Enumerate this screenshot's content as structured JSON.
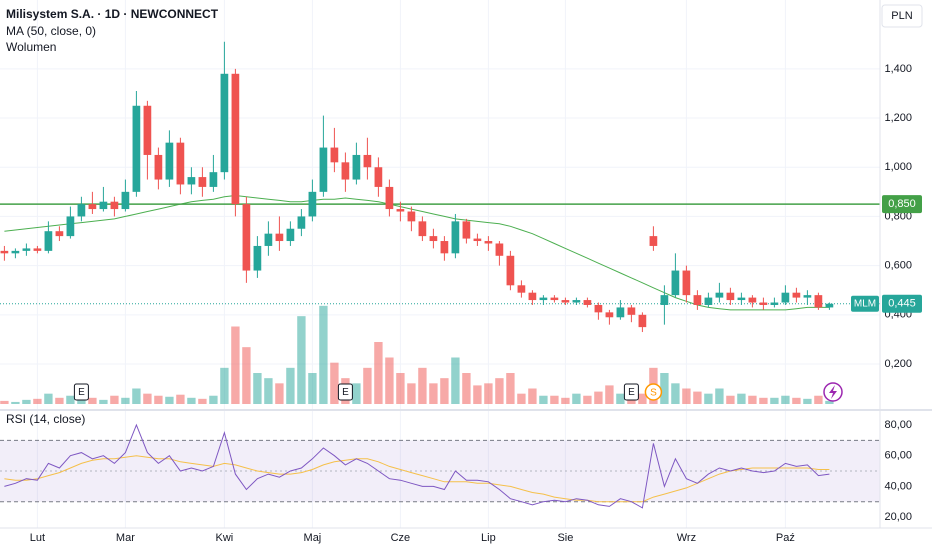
{
  "chart_data": {
    "type": "candlestick",
    "title": "Milisystem S.A. · 1D · NEWCONNECT",
    "currency": "PLN",
    "up_color": "#26a69a",
    "down_color": "#ef5350",
    "xlim": [
      -0.4,
      79.6
    ],
    "x_labels": [
      {
        "value": 3,
        "label": "Lut"
      },
      {
        "value": 11,
        "label": "Mar"
      },
      {
        "value": 20,
        "label": "Kwi"
      },
      {
        "value": 28,
        "label": "Maj"
      },
      {
        "value": 36,
        "label": "Cze"
      },
      {
        "value": 44,
        "label": "Lip"
      },
      {
        "value": 51,
        "label": "Sie"
      },
      {
        "value": 62,
        "label": "Wrz"
      },
      {
        "value": 71,
        "label": "Paź"
      }
    ],
    "ylim": [
      0.013,
      1.68
    ],
    "yticks": [
      {
        "value": 0.2,
        "label": "0,200"
      },
      {
        "value": 0.4,
        "label": "0,400"
      },
      {
        "value": 0.6,
        "label": "0,600"
      },
      {
        "value": 0.8,
        "label": "0,800"
      },
      {
        "value": 1.0,
        "label": "1,000"
      },
      {
        "value": 1.2,
        "label": "1,200"
      },
      {
        "value": 1.4,
        "label": "1,400"
      }
    ],
    "open": [
      0.66,
      0.65,
      0.66,
      0.67,
      0.66,
      0.74,
      0.72,
      0.8,
      0.85,
      0.83,
      0.86,
      0.83,
      0.9,
      1.25,
      1.05,
      0.95,
      1.1,
      0.93,
      0.96,
      0.92,
      0.98,
      1.38,
      0.85,
      0.58,
      0.68,
      0.73,
      0.7,
      0.75,
      0.8,
      0.9,
      1.08,
      1.02,
      0.95,
      1.05,
      1.0,
      0.92,
      0.83,
      0.82,
      0.78,
      0.72,
      0.7,
      0.65,
      0.78,
      0.71,
      0.7,
      0.69,
      0.64,
      0.52,
      0.49,
      0.46,
      0.47,
      0.46,
      0.45,
      0.46,
      0.44,
      0.41,
      0.39,
      0.43,
      0.4,
      0.72,
      0.44,
      0.48,
      0.58,
      0.48,
      0.44,
      0.47,
      0.49,
      0.46,
      0.47,
      0.45,
      0.44,
      0.45,
      0.49,
      0.47,
      0.48,
      0.43
    ],
    "high": [
      0.68,
      0.67,
      0.69,
      0.68,
      0.78,
      0.76,
      0.84,
      0.88,
      0.9,
      0.92,
      0.88,
      0.95,
      1.31,
      1.27,
      1.08,
      1.15,
      1.12,
      1.0,
      1.0,
      1.05,
      1.51,
      1.4,
      0.88,
      0.72,
      0.78,
      0.8,
      0.78,
      0.83,
      0.95,
      1.21,
      1.16,
      1.06,
      1.1,
      1.12,
      1.04,
      0.95,
      0.86,
      0.84,
      0.8,
      0.75,
      0.72,
      0.81,
      0.79,
      0.73,
      0.72,
      0.7,
      0.66,
      0.54,
      0.5,
      0.48,
      0.48,
      0.47,
      0.47,
      0.47,
      0.45,
      0.42,
      0.46,
      0.44,
      0.41,
      0.76,
      0.52,
      0.65,
      0.6,
      0.5,
      0.49,
      0.53,
      0.51,
      0.49,
      0.48,
      0.47,
      0.47,
      0.52,
      0.51,
      0.5,
      0.49,
      0.45
    ],
    "low": [
      0.62,
      0.63,
      0.64,
      0.65,
      0.65,
      0.7,
      0.71,
      0.78,
      0.81,
      0.82,
      0.8,
      0.82,
      0.88,
      0.95,
      0.91,
      0.92,
      0.89,
      0.89,
      0.88,
      0.9,
      0.95,
      0.8,
      0.53,
      0.55,
      0.64,
      0.66,
      0.68,
      0.72,
      0.78,
      0.88,
      0.98,
      0.9,
      0.93,
      0.95,
      0.88,
      0.8,
      0.78,
      0.74,
      0.7,
      0.67,
      0.62,
      0.63,
      0.69,
      0.68,
      0.66,
      0.6,
      0.5,
      0.47,
      0.44,
      0.44,
      0.45,
      0.44,
      0.44,
      0.43,
      0.38,
      0.36,
      0.38,
      0.37,
      0.33,
      0.66,
      0.36,
      0.47,
      0.45,
      0.42,
      0.43,
      0.45,
      0.44,
      0.44,
      0.43,
      0.42,
      0.43,
      0.44,
      0.45,
      0.44,
      0.42,
      0.42
    ],
    "close": [
      0.65,
      0.66,
      0.67,
      0.66,
      0.74,
      0.72,
      0.8,
      0.85,
      0.83,
      0.86,
      0.83,
      0.9,
      1.25,
      1.05,
      0.95,
      1.1,
      0.93,
      0.96,
      0.92,
      0.98,
      1.38,
      0.85,
      0.58,
      0.68,
      0.73,
      0.7,
      0.75,
      0.8,
      0.9,
      1.08,
      1.02,
      0.95,
      1.05,
      1.0,
      0.92,
      0.83,
      0.82,
      0.78,
      0.72,
      0.7,
      0.65,
      0.78,
      0.71,
      0.7,
      0.69,
      0.64,
      0.52,
      0.49,
      0.46,
      0.47,
      0.46,
      0.45,
      0.46,
      0.44,
      0.41,
      0.39,
      0.43,
      0.4,
      0.35,
      0.68,
      0.48,
      0.58,
      0.48,
      0.44,
      0.47,
      0.49,
      0.46,
      0.47,
      0.45,
      0.44,
      0.45,
      0.49,
      0.47,
      0.48,
      0.43,
      0.445
    ],
    "ma": {
      "label": "MA (50, close, 0)",
      "color": "#4caf50",
      "values": [
        0.74,
        0.745,
        0.75,
        0.755,
        0.76,
        0.765,
        0.77,
        0.775,
        0.78,
        0.785,
        0.79,
        0.8,
        0.81,
        0.82,
        0.83,
        0.84,
        0.85,
        0.86,
        0.865,
        0.87,
        0.88,
        0.885,
        0.88,
        0.875,
        0.87,
        0.865,
        0.86,
        0.86,
        0.865,
        0.87,
        0.87,
        0.875,
        0.87,
        0.865,
        0.86,
        0.85,
        0.84,
        0.83,
        0.82,
        0.81,
        0.8,
        0.79,
        0.785,
        0.78,
        0.775,
        0.77,
        0.76,
        0.745,
        0.73,
        0.71,
        0.69,
        0.67,
        0.65,
        0.63,
        0.61,
        0.59,
        0.57,
        0.55,
        0.53,
        0.51,
        0.49,
        0.47,
        0.455,
        0.44,
        0.43,
        0.425,
        0.42,
        0.42,
        0.42,
        0.42,
        0.42,
        0.42,
        0.425,
        0.43,
        0.43,
        0.43
      ]
    },
    "volume": {
      "label": "Wolumen",
      "ylim": [
        0,
        120
      ],
      "up_color": "rgba(38,166,154,0.5)",
      "down_color": "rgba(239,83,80,0.5)",
      "values": [
        3,
        2,
        4,
        5,
        10,
        6,
        8,
        5,
        6,
        4,
        8,
        6,
        15,
        10,
        8,
        7,
        9,
        6,
        5,
        8,
        35,
        75,
        55,
        30,
        25,
        20,
        35,
        85,
        30,
        95,
        40,
        25,
        20,
        35,
        60,
        45,
        30,
        20,
        35,
        20,
        25,
        45,
        30,
        18,
        20,
        25,
        30,
        10,
        15,
        8,
        8,
        6,
        10,
        8,
        12,
        18,
        10,
        12,
        10,
        35,
        30,
        20,
        15,
        12,
        10,
        15,
        8,
        10,
        8,
        6,
        6,
        8,
        6,
        5,
        8,
        3
      ]
    },
    "hline": {
      "value": 0.85,
      "label": "0,850",
      "color": "#43a047"
    },
    "last": {
      "symbol": "MLM",
      "value": 0.445,
      "label": "0,445",
      "color": "#26a69a"
    },
    "events": [
      {
        "index": 7,
        "label": "E"
      },
      {
        "index": 31,
        "label": "E"
      },
      {
        "index": 57,
        "label": "E"
      },
      {
        "index": 59,
        "label": "S"
      }
    ],
    "rsi": {
      "title": "RSI (14, close)",
      "color": "#7e57c2",
      "ma_color": "#f5c04a",
      "ylim": [
        12.9,
        87.8
      ],
      "yticks": [
        {
          "value": 20,
          "label": "20,00"
        },
        {
          "value": 40,
          "label": "40,00"
        },
        {
          "value": 60,
          "label": "60,00"
        },
        {
          "value": 80,
          "label": "80,00"
        }
      ],
      "bands": [
        30,
        70
      ],
      "mid": 50,
      "values": [
        40,
        42,
        45,
        44,
        55,
        52,
        60,
        62,
        58,
        60,
        55,
        62,
        80,
        62,
        55,
        60,
        50,
        52,
        50,
        53,
        75,
        48,
        38,
        45,
        48,
        46,
        50,
        52,
        58,
        65,
        60,
        54,
        58,
        55,
        50,
        45,
        44,
        42,
        40,
        40,
        38,
        50,
        44,
        44,
        43,
        38,
        32,
        30,
        28,
        30,
        31,
        30,
        32,
        31,
        28,
        27,
        32,
        30,
        26,
        68,
        40,
        58,
        45,
        42,
        48,
        52,
        50,
        52,
        50,
        49,
        50,
        55,
        53,
        54,
        47,
        48
      ],
      "ma_values": [
        45,
        44,
        44,
        45,
        47,
        49,
        52,
        55,
        57,
        58,
        58,
        59,
        60,
        59,
        58,
        58,
        56,
        55,
        54,
        53,
        55,
        54,
        52,
        50,
        49,
        48,
        48,
        49,
        51,
        54,
        56,
        57,
        58,
        58,
        56,
        53,
        51,
        49,
        47,
        45,
        43,
        43,
        43,
        42,
        42,
        41,
        40,
        38,
        36,
        35,
        33,
        32,
        31,
        31,
        30,
        30,
        30,
        30,
        30,
        33,
        35,
        37,
        39,
        42,
        45,
        48,
        50,
        51,
        52,
        52,
        52,
        52,
        52,
        52,
        51,
        51
      ]
    }
  }
}
